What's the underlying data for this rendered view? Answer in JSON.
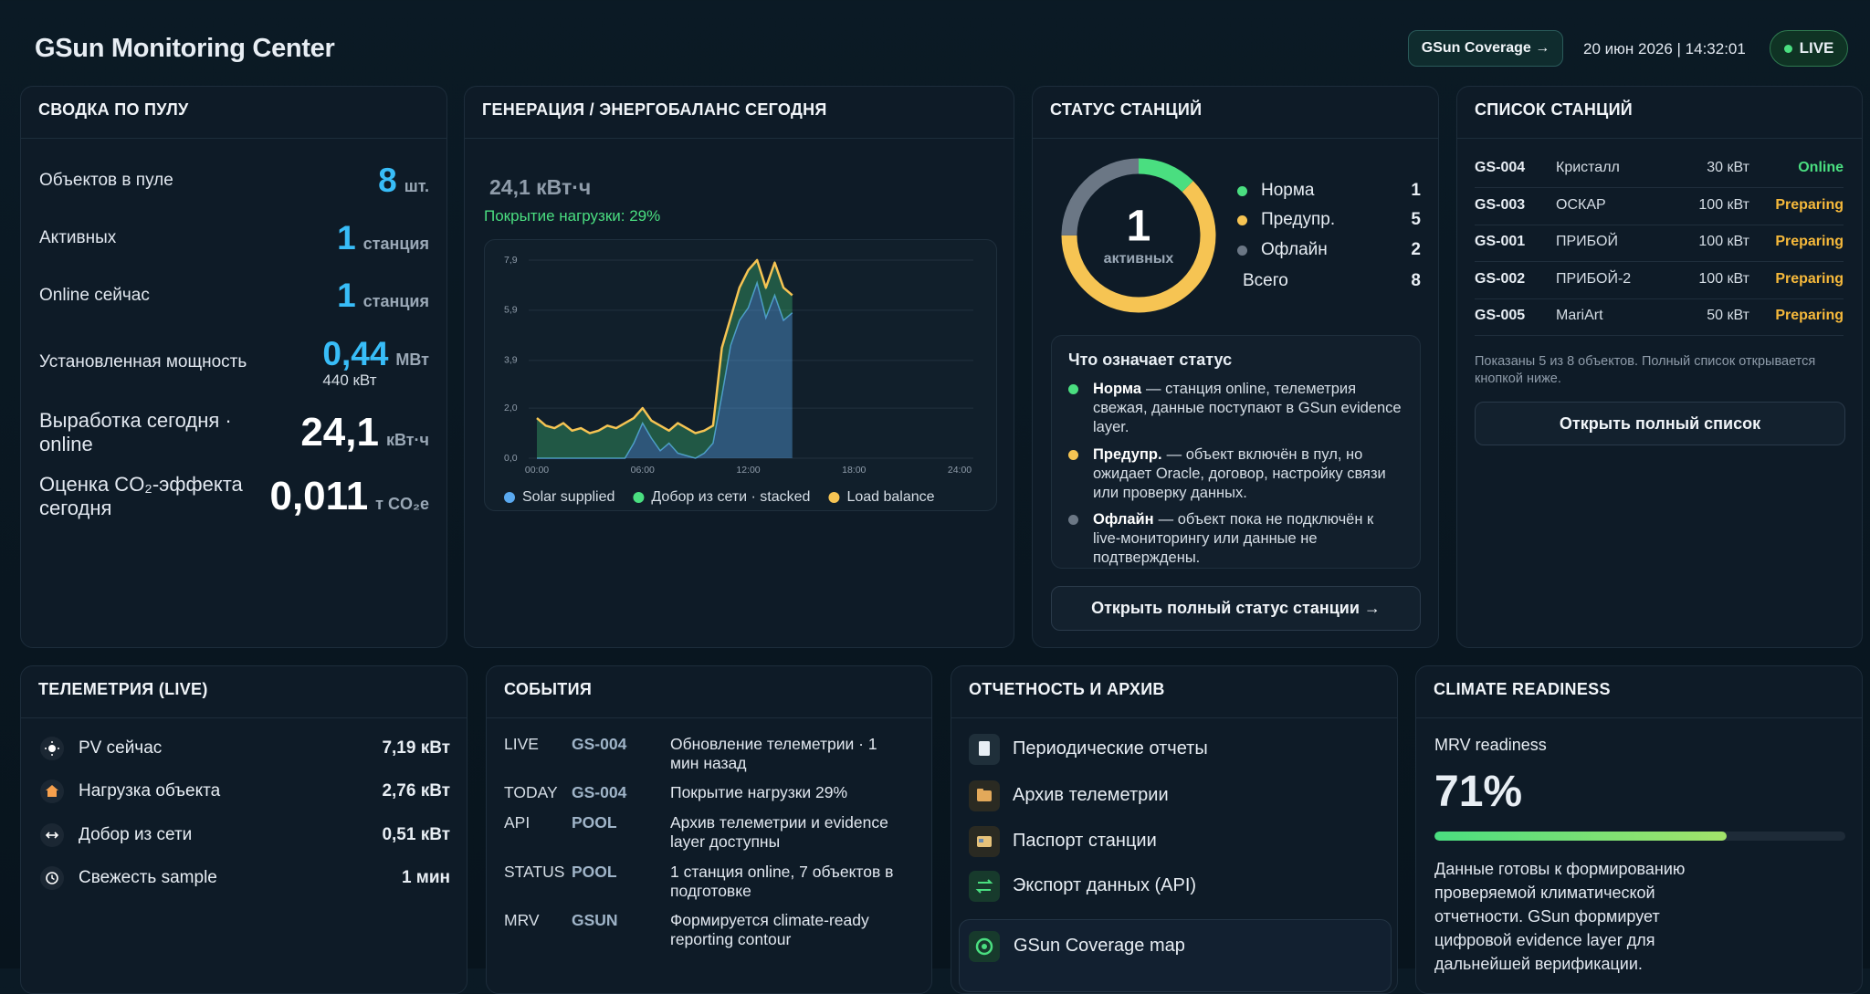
{
  "header": {
    "title": "GSun Monitoring Center",
    "coverage_button": "GSun Coverage →",
    "datetime": "20 июн 2026 | 14:32:01",
    "live": "LIVE"
  },
  "pool": {
    "title": "СВОДКА ПО ПУЛУ",
    "rows": [
      {
        "label": "Объектов в пуле",
        "value": "8",
        "unit": "шт."
      },
      {
        "label": "Активных",
        "value": "1",
        "unit": "станция"
      },
      {
        "label": "Online сейчас",
        "value": "1",
        "unit": "станция"
      },
      {
        "label": "Установленная мощность",
        "value": "0,44",
        "unit": "МВт",
        "sub": "440 кВт"
      },
      {
        "label": "Выработка сегодня · online",
        "value": "24,1",
        "unit": "кВт·ч"
      },
      {
        "label": "Оценка CO₂-эффекта сегодня",
        "value": "0,011",
        "unit": "т CO₂e"
      }
    ]
  },
  "generation": {
    "title": "ГЕНЕРАЦИЯ / ЭНЕРГОБАЛАНС СЕГОДНЯ",
    "total": "24,1 кВт·ч",
    "coverage": "Покрытие нагрузки: 29%"
  },
  "chart_data": [
    {
      "type": "area",
      "x": [
        0,
        0.5,
        1,
        1.5,
        2,
        2.5,
        3,
        3.5,
        4,
        4.5,
        5,
        5.5,
        6,
        6.5,
        7,
        7.5,
        8,
        8.5,
        9,
        9.5,
        10,
        10.5,
        11,
        11.5,
        12,
        12.5,
        13,
        13.5,
        14,
        14.5
      ],
      "series": [
        {
          "name": "Solar supplied",
          "color": "#5aa9f0",
          "style": "area",
          "values": [
            0,
            0,
            0,
            0,
            0,
            0,
            0,
            0,
            0,
            0,
            0,
            0.6,
            1.4,
            0.8,
            0.3,
            0.6,
            0.2,
            0.1,
            0,
            0.2,
            0.6,
            2.5,
            4.5,
            5.5,
            6.0,
            7.0,
            5.6,
            6.5,
            5.5,
            5.8
          ]
        },
        {
          "name": "Добор из сети · stacked",
          "color": "#4ade80",
          "style": "area",
          "values": [
            1.6,
            1.3,
            1.2,
            1.4,
            1.1,
            1.2,
            1.0,
            1.1,
            1.3,
            1.2,
            1.4,
            1.0,
            0.6,
            0.7,
            1.0,
            0.5,
            1.2,
            1.1,
            1.0,
            0.9,
            0.7,
            1.9,
            1.1,
            1.3,
            1.5,
            0.9,
            1.2,
            1.3,
            1.3,
            0.7
          ]
        },
        {
          "name": "Load balance",
          "color": "#f6c453",
          "style": "line",
          "values": [
            1.6,
            1.3,
            1.2,
            1.4,
            1.1,
            1.2,
            1.0,
            1.1,
            1.3,
            1.2,
            1.4,
            1.6,
            2.0,
            1.5,
            1.3,
            1.1,
            1.4,
            1.2,
            1.0,
            1.1,
            1.3,
            4.4,
            5.6,
            6.8,
            7.5,
            7.9,
            6.8,
            7.8,
            6.8,
            6.5
          ]
        }
      ],
      "xlim": [
        0,
        24
      ],
      "xticks": [
        {
          "value": 0,
          "label": "00:00"
        },
        {
          "value": 6,
          "label": "06:00"
        },
        {
          "value": 12,
          "label": "12:00"
        },
        {
          "value": 18,
          "label": "18:00"
        },
        {
          "value": 24,
          "label": "24:00"
        }
      ],
      "ylim": [
        0,
        7.9
      ],
      "yticks": [
        {
          "value": 0,
          "label": "0,0"
        },
        {
          "value": 2,
          "label": "2,0"
        },
        {
          "value": 3.9,
          "label": "3,9"
        },
        {
          "value": 5.9,
          "label": "5,9"
        },
        {
          "value": 7.9,
          "label": "7,9"
        }
      ],
      "grid": true
    },
    {
      "type": "donut",
      "categories": [
        "Норма",
        "Предупр.",
        "Офлайн"
      ],
      "values": [
        1,
        5,
        2
      ],
      "colors": [
        "#4ade80",
        "#f6c453",
        "#6b7785"
      ]
    }
  ],
  "status": {
    "title": "СТАТУС СТАНЦИЙ",
    "center_value": "1",
    "center_label": "активных",
    "total_label": "Всего",
    "total_value": "8",
    "info_title": "Что означает статус",
    "info": [
      {
        "term": "Норма",
        "text": "— станция online, телеметрия свежая, данные поступают в GSun evidence layer."
      },
      {
        "term": "Предупр.",
        "text": "— объект включён в пул, но ожидает Oracle, договор, настройку связи или проверку данных."
      },
      {
        "term": "Офлайн",
        "text": "— объект пока не подключён к live-мониторингу или данные не подтверждены."
      }
    ],
    "button": "Открыть полный статус станции →"
  },
  "stations": {
    "title": "СПИСОК СТАНЦИЙ",
    "rows": [
      {
        "id": "GS-004",
        "name": "Кристалл",
        "power": "30 кВт",
        "status": "Online",
        "color": "#4ade80"
      },
      {
        "id": "GS-003",
        "name": "ОСКАР",
        "power": "100 кВт",
        "status": "Preparing",
        "color": "#f6b93b"
      },
      {
        "id": "GS-001",
        "name": "ПРИБОЙ",
        "power": "100 кВт",
        "status": "Preparing",
        "color": "#f6b93b"
      },
      {
        "id": "GS-002",
        "name": "ПРИБОЙ-2",
        "power": "100 кВт",
        "status": "Preparing",
        "color": "#f6b93b"
      },
      {
        "id": "GS-005",
        "name": "MariArt",
        "power": "50 кВт",
        "status": "Preparing",
        "color": "#f6b93b"
      }
    ],
    "note": "Показаны 5 из 8 объектов. Полный список открывается кнопкой ниже.",
    "button": "Открыть полный список"
  },
  "telemetry": {
    "title": "ТЕЛЕМЕТРИЯ (LIVE)",
    "rows": [
      {
        "label": "PV сейчас",
        "value": "7,19 кВт"
      },
      {
        "label": "Нагрузка объекта",
        "value": "2,76 кВт"
      },
      {
        "label": "Добор из сети",
        "value": "0,51 кВт"
      },
      {
        "label": "Свежесть sample",
        "value": "1 мин"
      }
    ]
  },
  "events": {
    "title": "СОБЫТИЯ",
    "rows": [
      {
        "tag": "LIVE",
        "id": "GS-004",
        "text": "Обновление телеметрии · 1 мин назад"
      },
      {
        "tag": "TODAY",
        "id": "GS-004",
        "text": "Покрытие нагрузки 29%"
      },
      {
        "tag": "API",
        "id": "POOL",
        "text": "Архив телеметрии и evidence layer доступны"
      },
      {
        "tag": "STATUS",
        "id": "POOL",
        "text": "1 станция online, 7 объектов в подготовке"
      },
      {
        "tag": "MRV",
        "id": "GSUN",
        "text": "Формируется climate-ready reporting contour"
      }
    ]
  },
  "reports": {
    "title": "ОТЧЕТНОСТЬ И АРХИВ",
    "items": [
      "Периодические отчеты",
      "Архив телеметрии",
      "Паспорт станции",
      "Экспорт данных (API)"
    ],
    "map": "GSun Coverage map"
  },
  "climate": {
    "title": "CLIMATE READINESS",
    "label": "MRV readiness",
    "readiness": {
      "value": 71,
      "label": "71%"
    },
    "text": "Данные готовы к формированию проверяемой климатической отчетности. GSun формирует цифровой evidence layer для дальнейшей верификации."
  }
}
